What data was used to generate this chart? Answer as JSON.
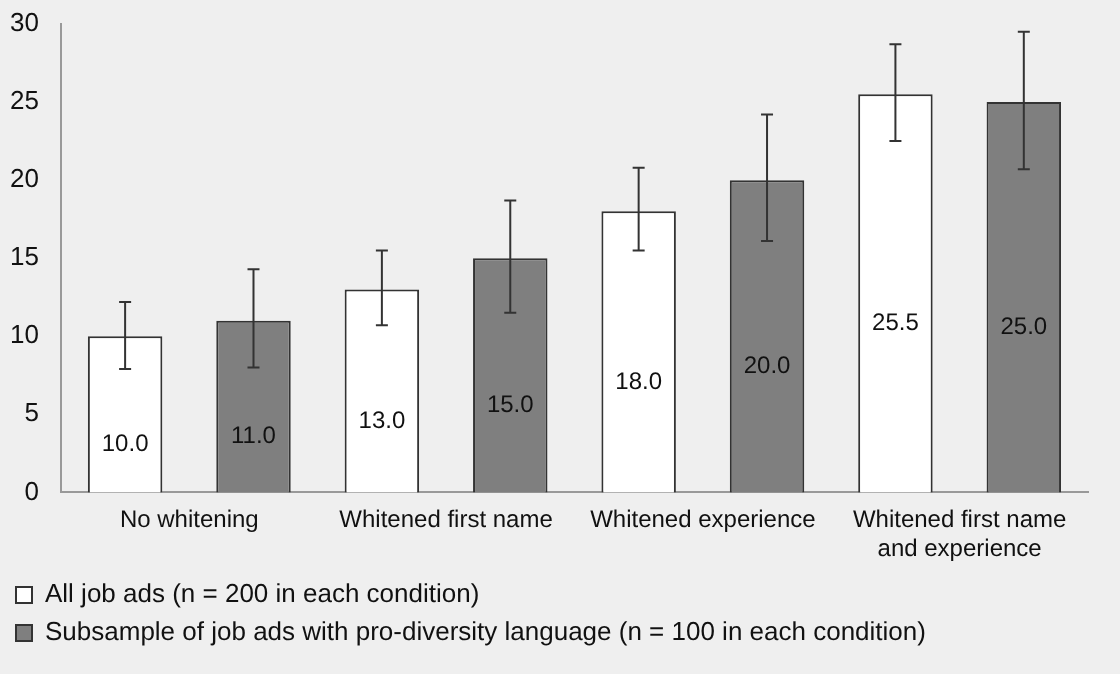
{
  "chart_data": {
    "type": "bar",
    "categories": [
      "No whitening",
      "Whitened first name",
      "Whitened experience",
      "Whitened first name and experience"
    ],
    "series": [
      {
        "name": "All job ads (n = 200 in each condition)",
        "color": "#ffffff",
        "values": [
          10.0,
          13.0,
          18.0,
          25.5
        ],
        "value_labels": [
          "10.0",
          "13.0",
          "18.0",
          "25.5"
        ],
        "errors": [
          [
            7.9,
            12.2
          ],
          [
            10.7,
            15.5
          ],
          [
            15.5,
            20.8
          ],
          [
            22.5,
            28.7
          ]
        ]
      },
      {
        "name": "Subsample of job ads with pro-diversity language (n = 100 in each condition)",
        "color": "#7f7f7f",
        "values": [
          11.0,
          15.0,
          20.0,
          25.0
        ],
        "value_labels": [
          "11.0",
          "15.0",
          "20.0",
          "25.0"
        ],
        "errors": [
          [
            8.0,
            14.3
          ],
          [
            11.5,
            18.7
          ],
          [
            16.1,
            24.2
          ],
          [
            20.7,
            29.5
          ]
        ]
      }
    ],
    "ylim": [
      0,
      30
    ],
    "yticks": [
      0,
      5,
      10,
      15,
      20,
      25,
      30
    ],
    "grid": false,
    "legend": "bottom"
  }
}
